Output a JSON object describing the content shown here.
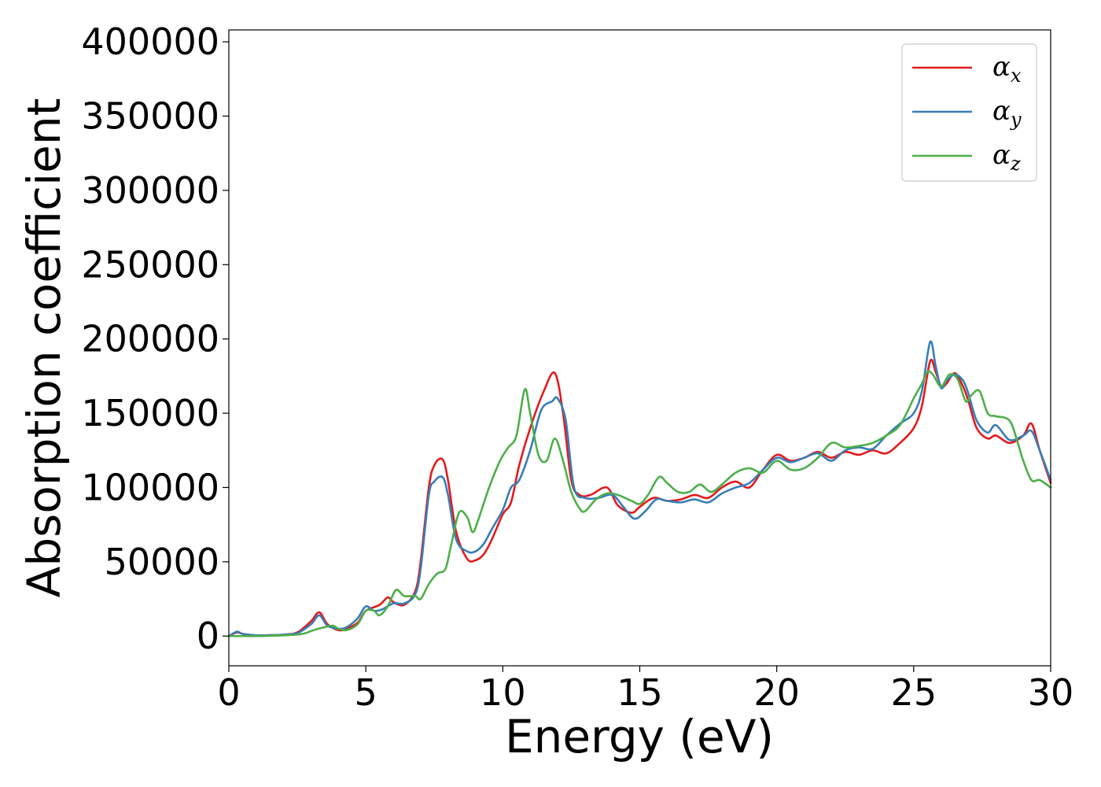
{
  "chart_data": {
    "type": "line",
    "title": "",
    "xlabel": "Energy (eV)",
    "ylabel": "Absorption coefficient",
    "xlim": [
      0,
      30
    ],
    "ylim": [
      -20000,
      408000
    ],
    "xticks": [
      0,
      5,
      10,
      15,
      20,
      25,
      30
    ],
    "yticks": [
      0,
      50000,
      100000,
      150000,
      200000,
      250000,
      300000,
      350000,
      400000
    ],
    "grid": false,
    "legend_position": "top-right",
    "series": [
      {
        "name": "α_x",
        "legend_base": "α",
        "legend_sub": "x",
        "color": "#e41a1c",
        "x": [
          0,
          0.3,
          0.5,
          1.0,
          1.5,
          2.0,
          2.5,
          3.0,
          3.3,
          3.6,
          4.0,
          4.3,
          4.7,
          5.0,
          5.5,
          5.8,
          6.0,
          6.4,
          6.8,
          7.0,
          7.3,
          7.5,
          7.8,
          8.0,
          8.3,
          8.7,
          9.0,
          9.3,
          9.6,
          10.0,
          10.3,
          10.6,
          11.0,
          11.5,
          11.9,
          12.2,
          12.5,
          12.8,
          13.2,
          13.8,
          14.2,
          14.7,
          15.0,
          15.5,
          16.0,
          16.5,
          17.0,
          17.5,
          18.0,
          18.5,
          19.0,
          19.5,
          20.0,
          20.5,
          21.0,
          21.5,
          22.0,
          22.5,
          23.0,
          23.5,
          24.0,
          24.5,
          25.0,
          25.3,
          25.6,
          25.8,
          26.0,
          26.2,
          26.5,
          26.8,
          27.0,
          27.3,
          27.7,
          28.0,
          28.5,
          29.0,
          29.3,
          29.6,
          30.0
        ],
        "y": [
          0,
          2500,
          1500,
          500,
          600,
          1000,
          2500,
          10000,
          16000,
          8000,
          4000,
          5000,
          9000,
          17000,
          21000,
          26000,
          23000,
          21000,
          30000,
          50000,
          100000,
          115000,
          119000,
          105000,
          70000,
          52000,
          51000,
          55000,
          65000,
          82000,
          90000,
          115000,
          140000,
          165000,
          177000,
          150000,
          105000,
          95000,
          95000,
          100000,
          88000,
          83000,
          87000,
          93000,
          91000,
          92000,
          95000,
          93000,
          100000,
          104000,
          100000,
          112000,
          122000,
          118000,
          120000,
          124000,
          120000,
          124000,
          122000,
          125000,
          123000,
          130000,
          140000,
          155000,
          185000,
          178000,
          168000,
          170000,
          177000,
          168000,
          158000,
          140000,
          133000,
          135000,
          130000,
          135000,
          143000,
          125000,
          103000
        ]
      },
      {
        "name": "α_y",
        "legend_base": "α",
        "legend_sub": "y",
        "color": "#377eb8",
        "x": [
          0,
          0.3,
          0.5,
          1.0,
          1.5,
          2.0,
          2.5,
          3.0,
          3.3,
          3.6,
          4.0,
          4.3,
          4.7,
          5.0,
          5.3,
          5.6,
          6.0,
          6.4,
          6.8,
          7.0,
          7.3,
          7.5,
          7.8,
          8.0,
          8.3,
          8.7,
          9.0,
          9.3,
          9.6,
          10.0,
          10.3,
          10.6,
          11.0,
          11.4,
          11.8,
          12.0,
          12.3,
          12.6,
          13.0,
          13.5,
          14.0,
          14.4,
          14.8,
          15.2,
          15.6,
          16.0,
          16.5,
          17.0,
          17.5,
          18.0,
          18.5,
          19.0,
          19.5,
          20.0,
          20.5,
          21.0,
          21.5,
          22.0,
          22.5,
          23.0,
          23.5,
          24.0,
          24.5,
          25.0,
          25.3,
          25.6,
          25.8,
          26.0,
          26.2,
          26.5,
          26.8,
          27.0,
          27.3,
          27.7,
          28.0,
          28.5,
          29.0,
          29.3,
          29.6,
          30.0
        ],
        "y": [
          0,
          3000,
          1500,
          500,
          500,
          1000,
          2000,
          8000,
          14000,
          7000,
          5000,
          6000,
          12000,
          20000,
          17000,
          18000,
          22000,
          22000,
          28000,
          45000,
          95000,
          104000,
          107000,
          95000,
          65000,
          57000,
          57000,
          62000,
          72000,
          85000,
          100000,
          105000,
          125000,
          152000,
          158000,
          160000,
          145000,
          100000,
          93000,
          93000,
          95000,
          87000,
          79000,
          84000,
          92000,
          91000,
          90000,
          92000,
          90000,
          96000,
          100000,
          103000,
          112000,
          120000,
          117000,
          120000,
          123000,
          118000,
          125000,
          127000,
          126000,
          135000,
          143000,
          150000,
          165000,
          198000,
          182000,
          167000,
          172000,
          176000,
          172000,
          163000,
          145000,
          137000,
          142000,
          132000,
          135000,
          138000,
          125000,
          105000
        ]
      },
      {
        "name": "α_z",
        "legend_base": "α",
        "legend_sub": "z",
        "color": "#4daf4a",
        "x": [
          0,
          0.5,
          1.0,
          1.5,
          2.0,
          2.5,
          2.8,
          3.1,
          3.5,
          3.8,
          4.0,
          4.3,
          4.7,
          5.0,
          5.3,
          5.5,
          5.8,
          6.1,
          6.4,
          6.8,
          7.0,
          7.3,
          7.6,
          7.9,
          8.1,
          8.4,
          8.7,
          8.9,
          9.1,
          9.5,
          9.9,
          10.2,
          10.5,
          10.8,
          11.0,
          11.3,
          11.6,
          11.9,
          12.2,
          12.5,
          12.8,
          13.0,
          13.4,
          13.8,
          14.2,
          14.7,
          15.0,
          15.3,
          15.7,
          16.0,
          16.4,
          16.8,
          17.2,
          17.6,
          18.0,
          18.5,
          19.0,
          19.5,
          20.0,
          20.5,
          21.0,
          21.5,
          22.0,
          22.5,
          23.0,
          23.5,
          24.0,
          24.5,
          25.0,
          25.3,
          25.5,
          25.7,
          26.0,
          26.3,
          26.6,
          26.9,
          27.1,
          27.4,
          27.7,
          28.0,
          28.5,
          28.8,
          29.0,
          29.3,
          29.6,
          30.0
        ],
        "y": [
          0,
          0,
          0,
          200,
          500,
          1000,
          2000,
          4000,
          6000,
          7000,
          5000,
          4000,
          8000,
          17000,
          17000,
          14000,
          20000,
          31000,
          27000,
          27000,
          25000,
          35000,
          42000,
          45000,
          60000,
          83000,
          80000,
          70000,
          78000,
          100000,
          118000,
          127000,
          135000,
          166000,
          150000,
          122000,
          118000,
          133000,
          118000,
          97000,
          86000,
          84000,
          92000,
          96000,
          95000,
          91000,
          89000,
          95000,
          107000,
          103000,
          97000,
          97000,
          102000,
          97000,
          102000,
          110000,
          113000,
          110000,
          118000,
          112000,
          113000,
          120000,
          130000,
          127000,
          128000,
          130000,
          135000,
          142000,
          160000,
          170000,
          178000,
          176000,
          168000,
          176000,
          173000,
          158000,
          162000,
          165000,
          150000,
          148000,
          145000,
          130000,
          118000,
          105000,
          105000,
          100000
        ]
      }
    ]
  }
}
